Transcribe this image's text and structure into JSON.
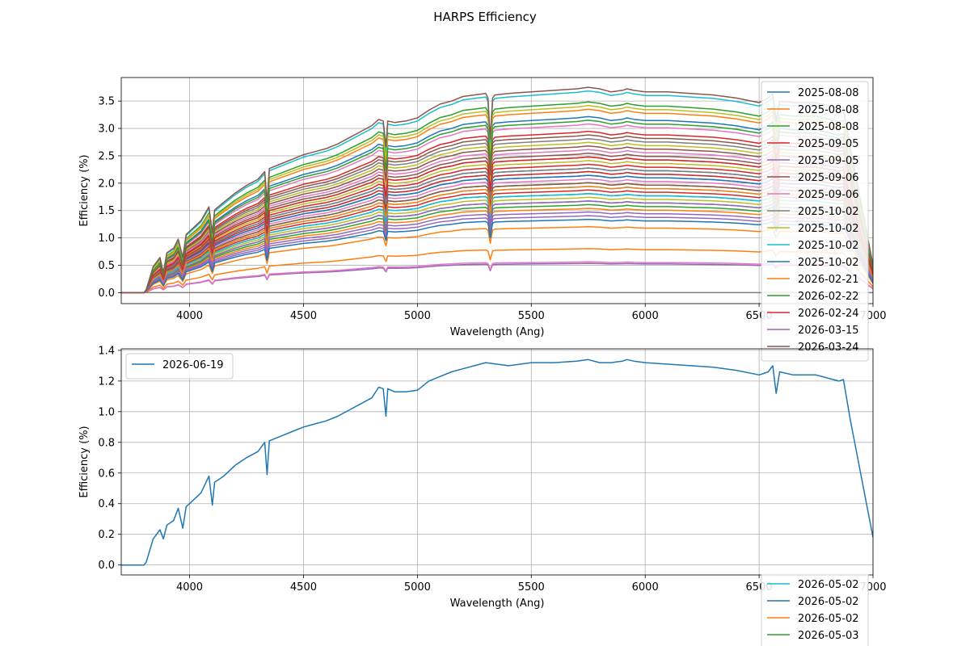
{
  "figure": {
    "title": "HARPS Efficiency"
  },
  "chart_data": [
    {
      "type": "line",
      "xlabel": "Wavelength (Ang)",
      "ylabel": "Efficiency (%)",
      "xlim": [
        3700,
        7000
      ],
      "ylim": [
        -0.2,
        3.93
      ],
      "xticks": [
        "4000",
        "4500",
        "5000",
        "5500",
        "6000",
        "6500",
        "7000"
      ],
      "yticks": [
        "0.0",
        "0.5",
        "1.0",
        "1.5",
        "2.0",
        "2.5",
        "3.0",
        "3.5"
      ],
      "grid": true,
      "legend_position": "right (overflows axes)",
      "shape": {
        "x": [
          3700,
          3800,
          3810,
          3840,
          3870,
          3885,
          3900,
          3930,
          3950,
          3970,
          3985,
          4000,
          4050,
          4085,
          4100,
          4110,
          4150,
          4200,
          4250,
          4300,
          4330,
          4340,
          4350,
          4400,
          4450,
          4500,
          4550,
          4600,
          4650,
          4700,
          4750,
          4800,
          4830,
          4850,
          4862,
          4870,
          4900,
          4950,
          5000,
          5050,
          5100,
          5150,
          5200,
          5250,
          5300,
          5310,
          5320,
          5330,
          5340,
          5400,
          5500,
          5600,
          5700,
          5750,
          5800,
          5850,
          5900,
          5920,
          5950,
          6000,
          6100,
          6200,
          6300,
          6400,
          6500,
          6540,
          6560,
          6575,
          6590,
          6650,
          6750,
          6850,
          6870,
          6900,
          7000
        ],
        "y": [
          0,
          0,
          0.02,
          0.17,
          0.23,
          0.13,
          0.26,
          0.29,
          0.35,
          0.23,
          0.38,
          0.4,
          0.47,
          0.56,
          0.39,
          0.54,
          0.59,
          0.65,
          0.7,
          0.74,
          0.79,
          0.59,
          0.81,
          0.84,
          0.87,
          0.9,
          0.92,
          0.94,
          0.97,
          1.01,
          1.05,
          1.09,
          1.13,
          1.12,
          0.95,
          1.12,
          1.11,
          1.12,
          1.14,
          1.19,
          1.23,
          1.25,
          1.28,
          1.29,
          1.3,
          1.27,
          1.0,
          1.27,
          1.29,
          1.3,
          1.31,
          1.32,
          1.33,
          1.34,
          1.33,
          1.31,
          1.32,
          1.33,
          1.32,
          1.31,
          1.31,
          1.3,
          1.29,
          1.27,
          1.24,
          1.27,
          1.3,
          1.12,
          1.25,
          1.24,
          1.24,
          1.2,
          1.21,
          0.95,
          0.18
        ]
      },
      "series": [
        {
          "name": "2025-08-08",
          "color": "#1f77b4",
          "scale": 2.4
        },
        {
          "name": "2025-08-08",
          "color": "#ff7f0e",
          "scale": 2.5
        },
        {
          "name": "2025-08-08",
          "color": "#2ca02c",
          "scale": 2.6
        },
        {
          "name": "2025-09-05",
          "color": "#d62728",
          "scale": 2.2
        },
        {
          "name": "2025-09-05",
          "color": "#9467bd",
          "scale": 1.6
        },
        {
          "name": "2025-09-06",
          "color": "#8c564b",
          "scale": 2.0
        },
        {
          "name": "2025-09-06",
          "color": "#e377c2",
          "scale": 2.3
        },
        {
          "name": "2025-10-02",
          "color": "#7f7f7f",
          "scale": 2.1
        },
        {
          "name": "2025-10-02",
          "color": "#bcbd22",
          "scale": 2.55
        },
        {
          "name": "2025-10-02",
          "color": "#17becf",
          "scale": 2.75
        },
        {
          "name": "2025-10-02",
          "color": "#1f77b4",
          "scale": 1.7
        },
        {
          "name": "2026-02-21",
          "color": "#ff7f0e",
          "scale": 1.15
        },
        {
          "name": "2026-02-22",
          "color": "#2ca02c",
          "scale": 1.5
        },
        {
          "name": "2026-02-24",
          "color": "#d62728",
          "scale": 1.4
        },
        {
          "name": "2026-03-15",
          "color": "#9467bd",
          "scale": 0.4
        },
        {
          "name": "2026-03-24",
          "color": "#8c564b",
          "scale": 2.8
        }
      ],
      "extra_series_scales": [
        {
          "color": "#e377c2",
          "scale": 0.42
        },
        {
          "color": "#7f7f7f",
          "scale": 0.0
        },
        {
          "color": "#bcbd22",
          "scale": 1.8
        },
        {
          "color": "#17becf",
          "scale": 1.65
        },
        {
          "color": "#1f77b4",
          "scale": 1.35
        },
        {
          "color": "#ff7f0e",
          "scale": 0.6
        },
        {
          "color": "#2ca02c",
          "scale": 1.25
        },
        {
          "color": "#d62728",
          "scale": 1.75
        },
        {
          "color": "#9467bd",
          "scale": 1.05
        },
        {
          "color": "#8c564b",
          "scale": 1.9
        },
        {
          "color": "#e377c2",
          "scale": 1.55
        },
        {
          "color": "#7f7f7f",
          "scale": 1.85
        },
        {
          "color": "#bcbd22",
          "scale": 1.3
        },
        {
          "color": "#17becf",
          "scale": 1.45
        },
        {
          "color": "#1f77b4",
          "scale": 1.6
        },
        {
          "color": "#ff7f0e",
          "scale": 0.9
        },
        {
          "color": "#2ca02c",
          "scale": 1.2
        },
        {
          "color": "#d62728",
          "scale": 1.65
        },
        {
          "color": "#9467bd",
          "scale": 1.1
        },
        {
          "color": "#8c564b",
          "scale": 1.5
        },
        {
          "color": "#e377c2",
          "scale": 1.95
        },
        {
          "color": "#7f7f7f",
          "scale": 1.7
        },
        {
          "color": "#bcbd22",
          "scale": 2.05
        },
        {
          "color": "#17becf",
          "scale": 1.35
        },
        {
          "color": "#1f77b4",
          "scale": 1.0
        },
        {
          "color": "#ff7f0e",
          "scale": 1.45
        },
        {
          "color": "#2ca02c",
          "scale": 2.35
        },
        {
          "color": "#d62728",
          "scale": 1.85
        },
        {
          "color": "#9467bd",
          "scale": 1.25
        },
        {
          "color": "#8c564b",
          "scale": 2.15
        }
      ]
    },
    {
      "type": "line",
      "xlabel": "Wavelength (Ang)",
      "ylabel": "Efficiency (%)",
      "xlim": [
        3700,
        7000
      ],
      "ylim": [
        -0.065,
        1.41
      ],
      "xticks": [
        "4000",
        "4500",
        "5000",
        "5500",
        "6000",
        "6500",
        "7000"
      ],
      "yticks": [
        "0.0",
        "0.2",
        "0.4",
        "0.6",
        "0.8",
        "1.0",
        "1.2",
        "1.4"
      ],
      "grid": true,
      "legend_position": "upper left",
      "series": [
        {
          "name": "2026-06-19",
          "color": "#1f77b4",
          "x": [
            3700,
            3800,
            3810,
            3840,
            3870,
            3885,
            3900,
            3930,
            3950,
            3970,
            3985,
            4000,
            4050,
            4085,
            4100,
            4110,
            4150,
            4200,
            4250,
            4300,
            4330,
            4340,
            4350,
            4400,
            4450,
            4500,
            4550,
            4600,
            4650,
            4700,
            4750,
            4800,
            4830,
            4850,
            4862,
            4870,
            4900,
            4950,
            5000,
            5050,
            5100,
            5150,
            5200,
            5250,
            5300,
            5400,
            5500,
            5600,
            5700,
            5750,
            5800,
            5850,
            5900,
            5920,
            5950,
            6000,
            6100,
            6200,
            6300,
            6400,
            6500,
            6540,
            6560,
            6575,
            6590,
            6650,
            6750,
            6850,
            6870,
            6900,
            7000
          ],
          "y": [
            0,
            0,
            0.02,
            0.17,
            0.23,
            0.17,
            0.26,
            0.29,
            0.37,
            0.24,
            0.38,
            0.4,
            0.47,
            0.58,
            0.39,
            0.54,
            0.58,
            0.65,
            0.7,
            0.74,
            0.8,
            0.59,
            0.81,
            0.84,
            0.87,
            0.9,
            0.92,
            0.94,
            0.97,
            1.01,
            1.05,
            1.09,
            1.16,
            1.15,
            0.97,
            1.15,
            1.13,
            1.13,
            1.14,
            1.2,
            1.23,
            1.26,
            1.28,
            1.3,
            1.32,
            1.3,
            1.32,
            1.32,
            1.33,
            1.34,
            1.32,
            1.32,
            1.33,
            1.34,
            1.33,
            1.32,
            1.31,
            1.3,
            1.29,
            1.27,
            1.24,
            1.26,
            1.3,
            1.12,
            1.26,
            1.24,
            1.24,
            1.2,
            1.21,
            0.95,
            0.18
          ]
        }
      ]
    }
  ],
  "overflow_legend": {
    "entries": [
      {
        "name": "2026-05-02",
        "color": "#17becf"
      },
      {
        "name": "2026-05-02",
        "color": "#1f77b4"
      },
      {
        "name": "2026-05-02",
        "color": "#ff7f0e"
      },
      {
        "name": "2026-05-03",
        "color": "#2ca02c"
      }
    ]
  }
}
